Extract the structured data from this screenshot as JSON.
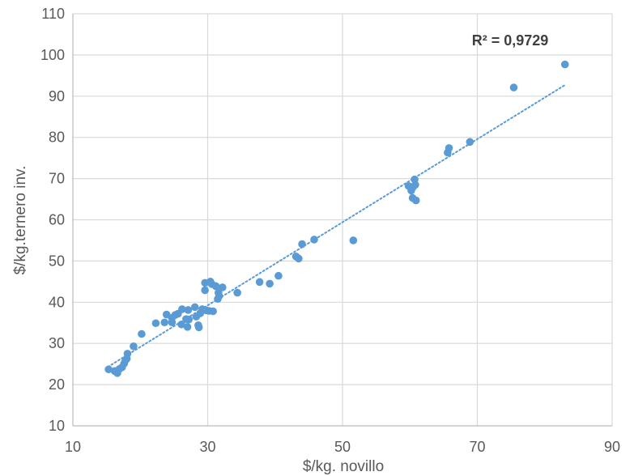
{
  "chart_data": {
    "type": "scatter",
    "xlabel": "$/kg. novillo",
    "ylabel": "$/kg.ternero inv.",
    "xlim": [
      10,
      90
    ],
    "ylim": [
      10,
      110
    ],
    "x_ticks": [
      10,
      30,
      50,
      70,
      90
    ],
    "y_ticks": [
      10,
      20,
      30,
      40,
      50,
      60,
      70,
      80,
      90,
      100,
      110
    ],
    "grid": true,
    "legend": "none",
    "marker_color": "#5b9bd5",
    "trendline": {
      "type": "linear",
      "style": "dotted",
      "color": "#5b9bd5",
      "x": [
        15.2,
        83
      ],
      "y": [
        24.3,
        92.7
      ]
    },
    "annotation": "R² = 0,9729",
    "series": [
      {
        "x": [
          15.3,
          16.2,
          16.6,
          16.9,
          17.3,
          17.6,
          17.8,
          18.0,
          18.1,
          19.0,
          20.2,
          22.3,
          23.6,
          23.9,
          24.7,
          24.7,
          25.2,
          25.6,
          26.1,
          26.2,
          26.8,
          27.0,
          27.1,
          27.2,
          28.1,
          28.3,
          28.6,
          28.7,
          28.9,
          29.2,
          29.6,
          29.6,
          29.8,
          30.2,
          30.4,
          30.6,
          30.8,
          31.2,
          31.5,
          31.6,
          31.7,
          32.2,
          34.4,
          37.7,
          39.2,
          40.5,
          43.1,
          43.5,
          44.0,
          45.8,
          51.6,
          59.8,
          60.2,
          60.4,
          60.5,
          60.7,
          60.8,
          60.9,
          65.6,
          65.8,
          68.9,
          75.4,
          83.0
        ],
        "y": [
          23.7,
          23.3,
          22.8,
          23.8,
          24.2,
          25.1,
          25.9,
          26.3,
          27.5,
          29.3,
          32.3,
          34.9,
          35.1,
          37.0,
          36.2,
          35.1,
          36.9,
          37.2,
          34.6,
          38.3,
          35.9,
          34.0,
          38.1,
          35.8,
          38.8,
          36.5,
          34.4,
          33.9,
          37.3,
          38.3,
          42.9,
          44.7,
          38.0,
          37.9,
          45.0,
          44.4,
          37.8,
          43.9,
          40.8,
          42.3,
          41.5,
          43.6,
          42.3,
          44.9,
          44.5,
          46.4,
          51.1,
          50.6,
          54.1,
          55.2,
          55.0,
          68.2,
          67.1,
          65.3,
          68.0,
          69.8,
          68.5,
          64.7,
          76.3,
          77.4,
          78.9,
          92.1,
          97.7
        ]
      }
    ]
  }
}
